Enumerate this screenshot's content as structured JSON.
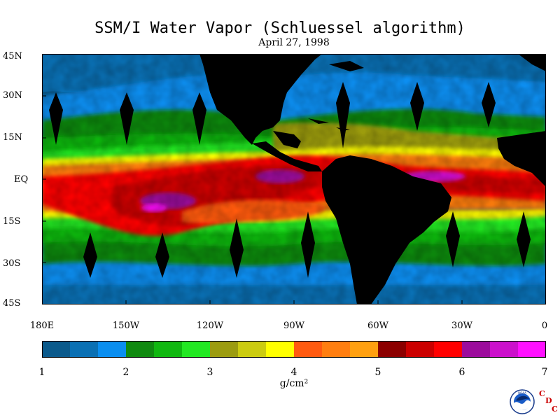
{
  "title": "SSM/I Water Vapor (Schluessel algorithm)",
  "subtitle": "April 27, 1998",
  "lat_labels": [
    "45N",
    "30N",
    "15N",
    "EQ",
    "15S",
    "30S",
    "45S"
  ],
  "lon_labels": [
    "180E",
    "150W",
    "120W",
    "90W",
    "60W",
    "30W",
    "0"
  ],
  "colorbar": {
    "ticks": [
      "1",
      "2",
      "3",
      "4",
      "5",
      "6",
      "7"
    ],
    "unit": "g/cm²",
    "colors": [
      "#0b5a8c",
      "#0a70b4",
      "#0a8ef0",
      "#108a10",
      "#10b810",
      "#22e822",
      "#9c9c10",
      "#cccc10",
      "#ffff00",
      "#ff5a10",
      "#ff7e10",
      "#ffa010",
      "#8c0000",
      "#cc0000",
      "#ff0000",
      "#9c0c9c",
      "#cc10cc",
      "#ff10ff"
    ]
  },
  "logo": {
    "text": "NOAA",
    "cdc": [
      "C",
      "D",
      "C"
    ]
  },
  "colors": {
    "land": "#000000",
    "background": "#ffffff"
  }
}
